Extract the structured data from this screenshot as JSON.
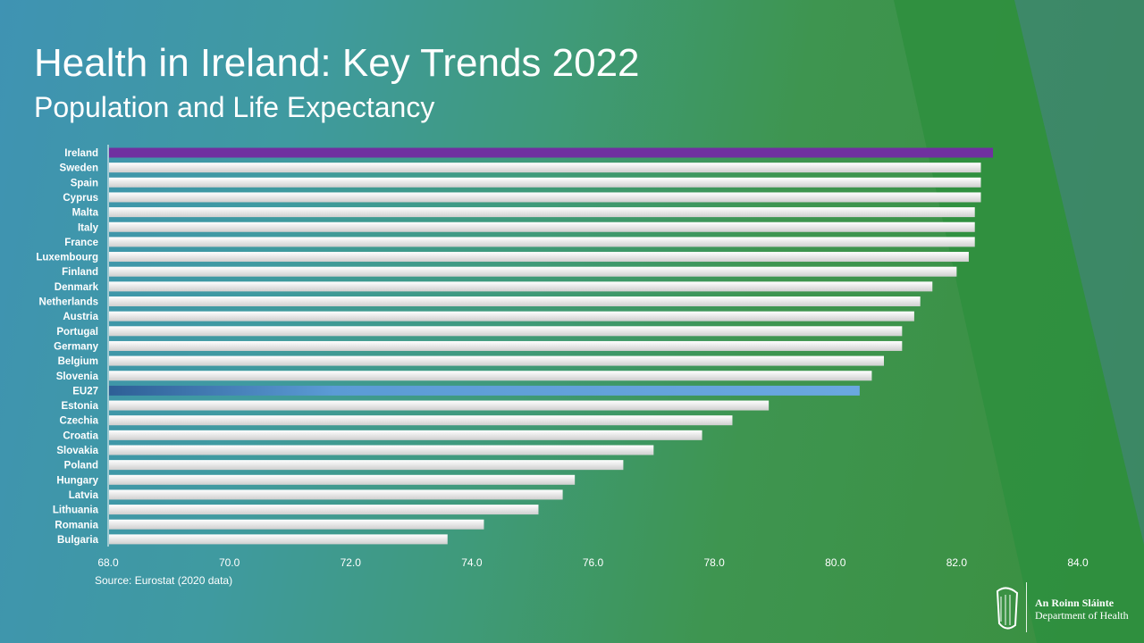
{
  "title": "Health in Ireland: Key Trends 2022",
  "subtitle": "Population and Life Expectancy",
  "source": "Source: Eurostat (2020 data)",
  "logo": {
    "line1": "An Roinn Sláinte",
    "line2": "Department of Health",
    "icon": "harp-icon"
  },
  "chart_data": {
    "type": "bar",
    "orientation": "horizontal",
    "categories": [
      "Ireland",
      "Sweden",
      "Spain",
      "Cyprus",
      "Malta",
      "Italy",
      "France",
      "Luxembourg",
      "Finland",
      "Denmark",
      "Netherlands",
      "Austria",
      "Portugal",
      "Germany",
      "Belgium",
      "Slovenia",
      "EU27",
      "Estonia",
      "Czechia",
      "Croatia",
      "Slovakia",
      "Poland",
      "Hungary",
      "Latvia",
      "Lithuania",
      "Romania",
      "Bulgaria"
    ],
    "values": [
      82.6,
      82.4,
      82.4,
      82.4,
      82.3,
      82.3,
      82.3,
      82.2,
      82.0,
      81.6,
      81.4,
      81.3,
      81.1,
      81.1,
      80.8,
      80.6,
      80.4,
      78.9,
      78.3,
      77.8,
      77.0,
      76.5,
      75.7,
      75.5,
      75.1,
      74.2,
      73.6
    ],
    "xlim": [
      68,
      84
    ],
    "xticks": [
      "68.0",
      "70.0",
      "72.0",
      "74.0",
      "76.0",
      "78.0",
      "80.0",
      "82.0",
      "84.0"
    ],
    "grid": false,
    "colors": {
      "default": "#e8e8e8",
      "Ireland": "#7030a0",
      "EU27": "#5b9bd5"
    }
  }
}
